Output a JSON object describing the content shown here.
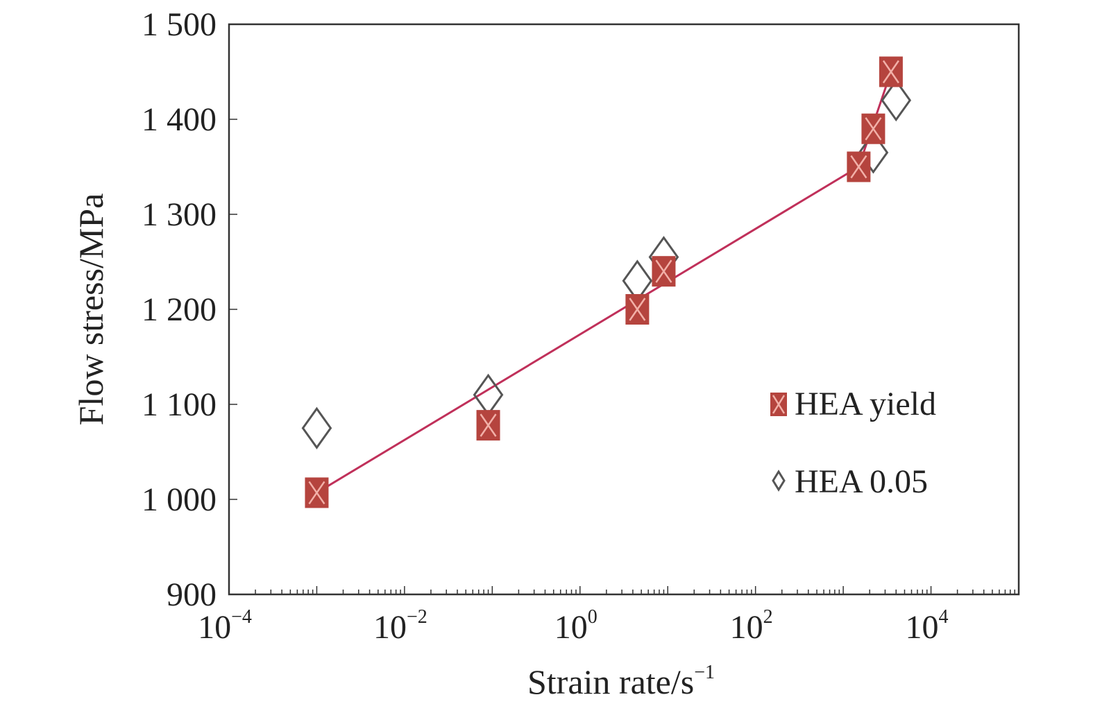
{
  "chart_data": {
    "type": "scatter",
    "xlabel": "Strain rate/s",
    "xlabel_exponent": "−1",
    "ylabel": "Flow stress/MPa",
    "xscale": "log",
    "xlim": [
      0.0001,
      100000
    ],
    "ylim": [
      900,
      1500
    ],
    "x_ticks": [
      {
        "base": "10",
        "exp": "−4"
      },
      {
        "base": "10",
        "exp": "−2"
      },
      {
        "base": "10",
        "exp": "0"
      },
      {
        "base": "10",
        "exp": "2"
      },
      {
        "base": "10",
        "exp": "4"
      }
    ],
    "x_tick_values": [
      0.0001,
      0.01,
      1,
      100,
      10000
    ],
    "y_ticks": [
      "900",
      "1 000",
      "1 100",
      "1 200",
      "1 300",
      "1 400",
      "1 500"
    ],
    "y_tick_values": [
      900,
      1000,
      1100,
      1200,
      1300,
      1400,
      1500
    ],
    "series": [
      {
        "name": "HEA yield",
        "marker": "filled-square",
        "color": "#b5443e",
        "x": [
          0.001,
          0.09,
          4.5,
          9,
          1500,
          2200,
          3500
        ],
        "y": [
          1007,
          1078,
          1200,
          1240,
          1350,
          1390,
          1450
        ]
      },
      {
        "name": "HEA 0.05",
        "marker": "open-diamond",
        "color": "#555555",
        "x": [
          0.001,
          0.09,
          4.5,
          9,
          2200,
          4000
        ],
        "y": [
          1075,
          1110,
          1230,
          1255,
          1365,
          1420
        ]
      }
    ],
    "fit_line": {
      "color": "#c0305a",
      "segments": [
        {
          "x": [
            0.001,
            1500
          ],
          "y": [
            1007,
            1350
          ]
        },
        {
          "x": [
            1500,
            3500
          ],
          "y": [
            1350,
            1450
          ]
        }
      ]
    },
    "legend_position": "right"
  }
}
